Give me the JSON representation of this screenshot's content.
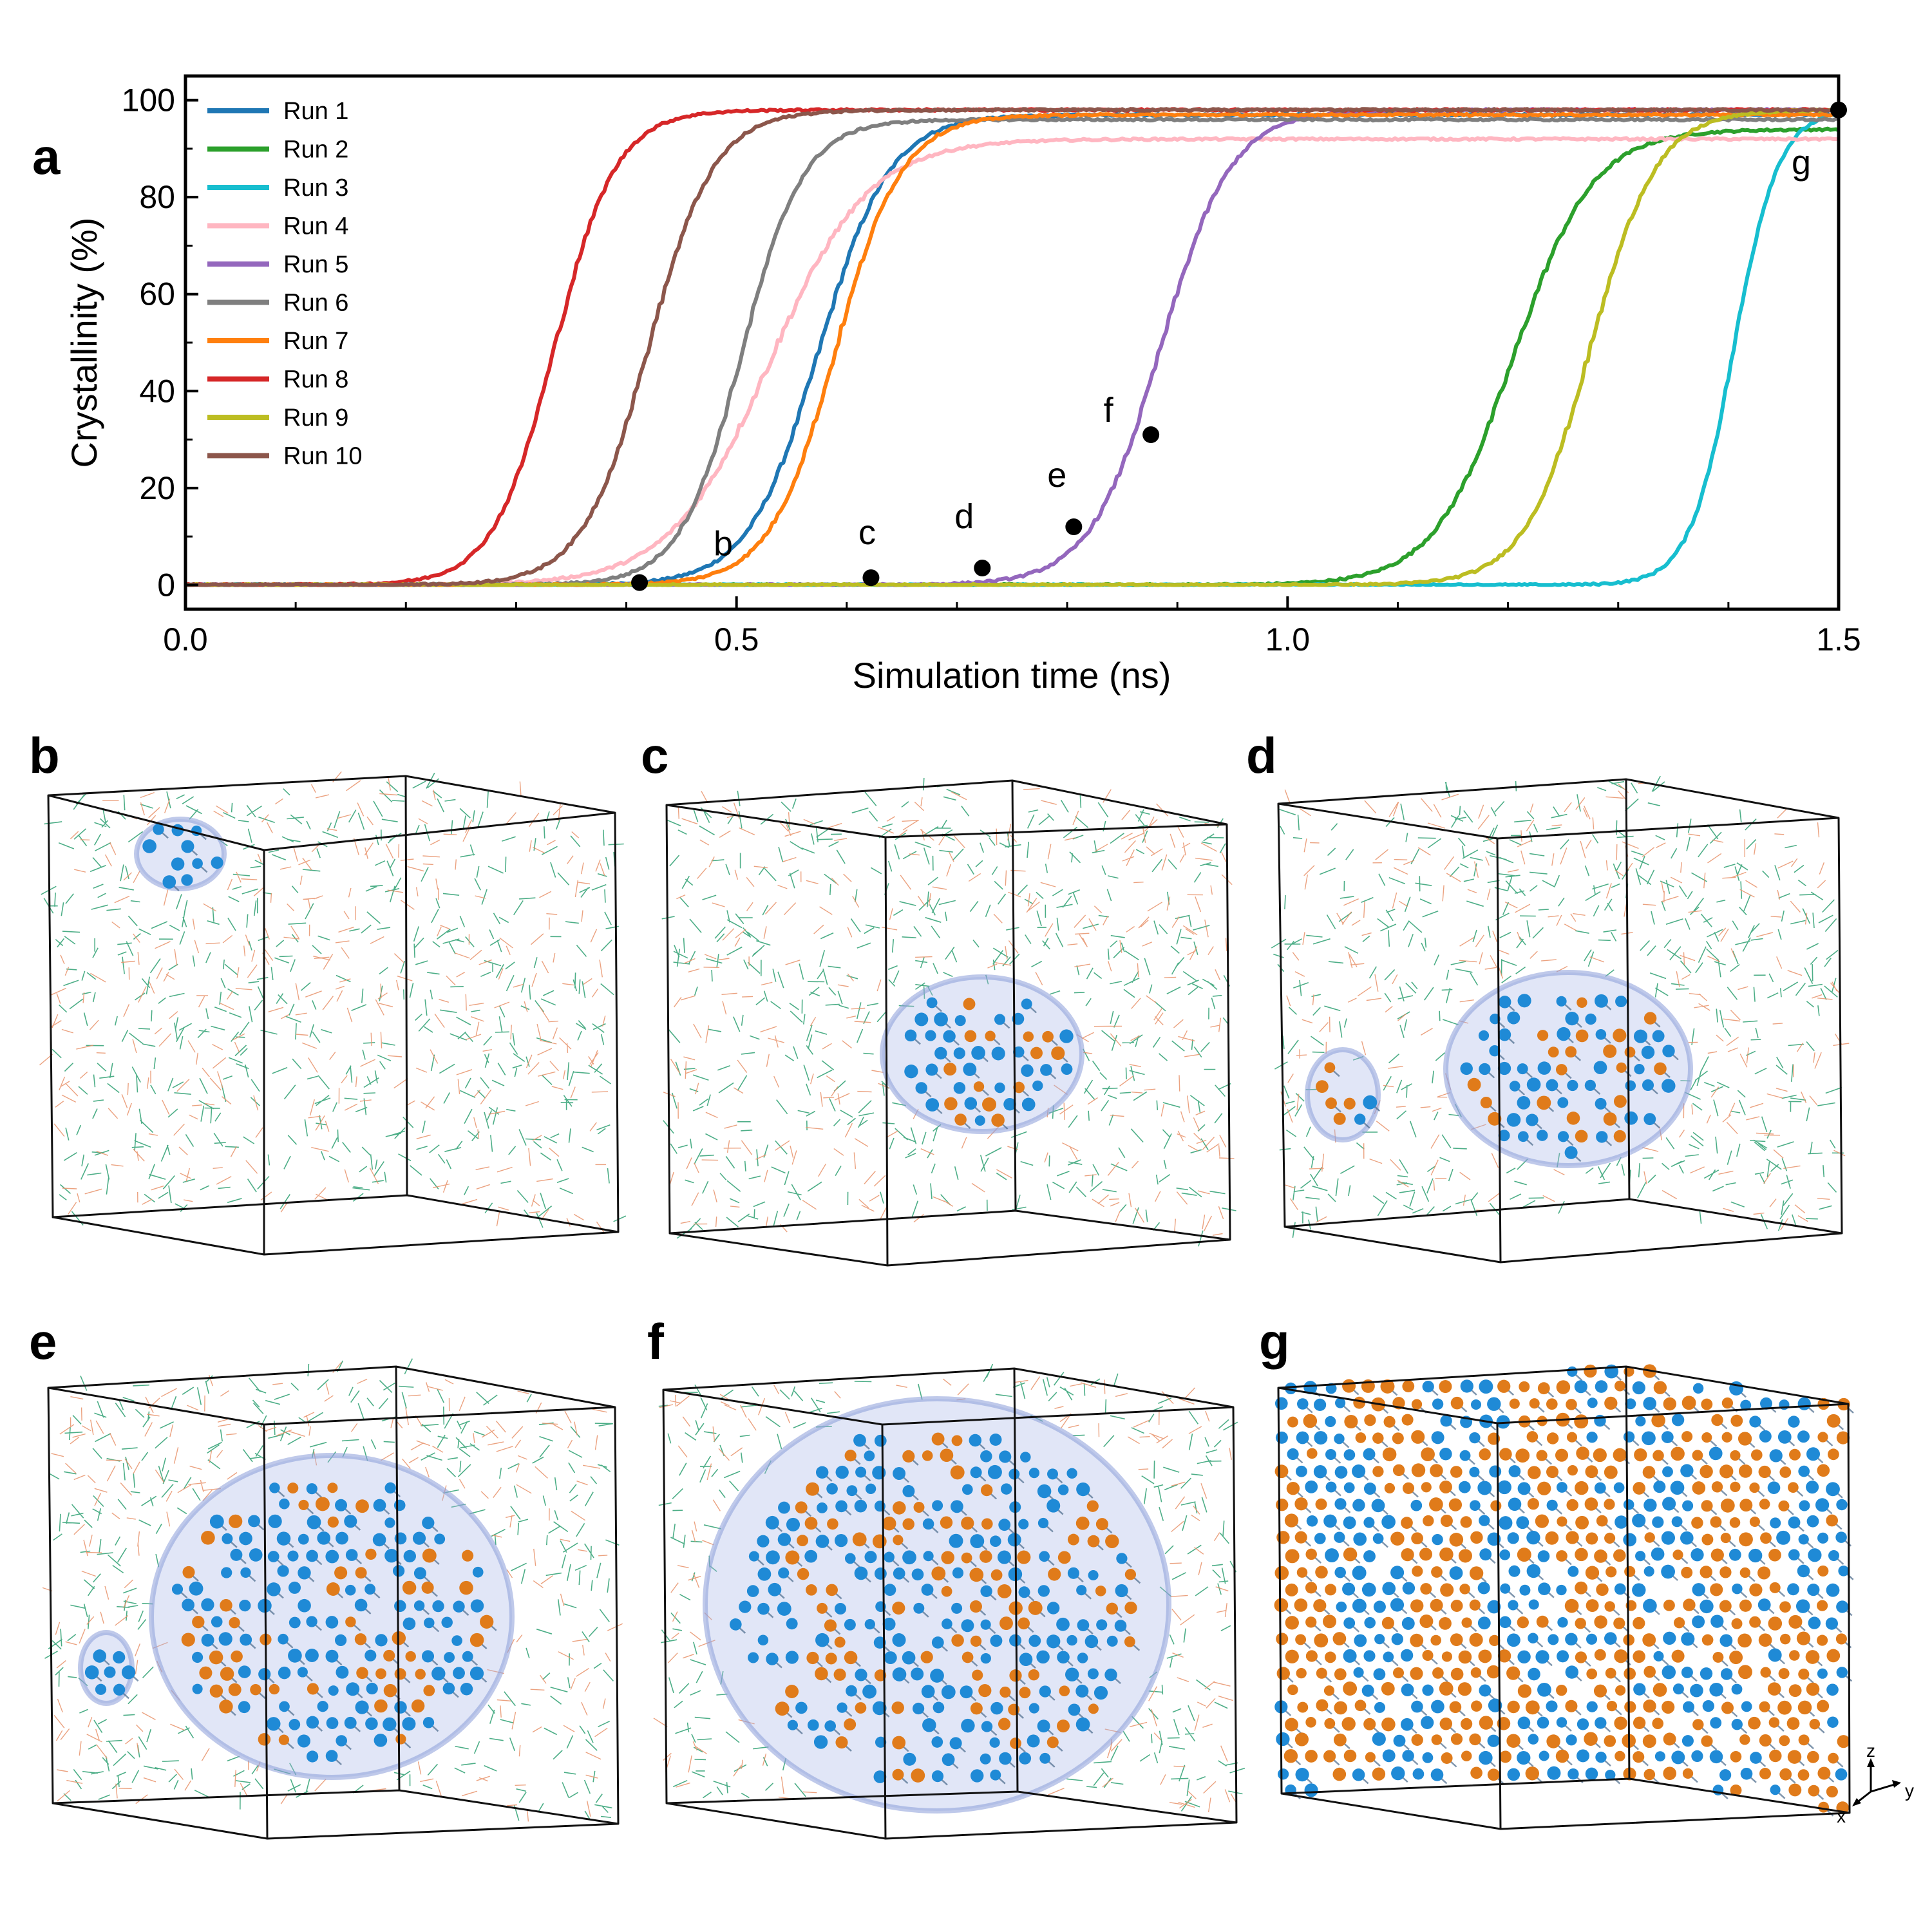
{
  "figure": {
    "panel_labels": [
      "a",
      "b",
      "c",
      "d",
      "e",
      "f",
      "g"
    ],
    "axes_triad": [
      "z",
      "y",
      "x"
    ]
  },
  "chart_data": {
    "type": "line",
    "title": "",
    "xlabel": "Simulation time (ns)",
    "ylabel": "Crystallinity (%)",
    "xlim": [
      0.0,
      1.5
    ],
    "ylim": [
      -5,
      105
    ],
    "xticks": [
      0.0,
      0.5,
      1.0,
      1.5
    ],
    "xtick_labels": [
      "0.0",
      "0.5",
      "1.0",
      "1.5"
    ],
    "yticks": [
      0,
      20,
      40,
      60,
      80,
      100
    ],
    "ytick_labels": [
      "0",
      "20",
      "40",
      "60",
      "80",
      "100"
    ],
    "grid": false,
    "legend_position": "upper-left",
    "series": [
      {
        "name": "Run 1",
        "color": "#1f77b4",
        "onset": 0.575,
        "width": 0.032,
        "plateau": 97
      },
      {
        "name": "Run 2",
        "color": "#2ca02c",
        "onset": 1.205,
        "width": 0.036,
        "plateau": 94
      },
      {
        "name": "Run 3",
        "color": "#17becf",
        "onset": 1.405,
        "width": 0.02,
        "plateau": 98
      },
      {
        "name": "Run 4",
        "color": "#ffb6c1",
        "onset": 0.53,
        "width": 0.045,
        "plateau": 92
      },
      {
        "name": "Run 5",
        "color": "#9467bd",
        "onset": 0.885,
        "width": 0.032,
        "plateau": 98
      },
      {
        "name": "Run 6",
        "color": "#7f7f7f",
        "onset": 0.505,
        "width": 0.028,
        "plateau": 96
      },
      {
        "name": "Run 7",
        "color": "#ff7f0e",
        "onset": 0.59,
        "width": 0.03,
        "plateau": 97
      },
      {
        "name": "Run 8",
        "color": "#d62728",
        "onset": 0.335,
        "width": 0.028,
        "plateau": 98
      },
      {
        "name": "Run 9",
        "color": "#bcbd22",
        "onset": 1.275,
        "width": 0.03,
        "plateau": 98
      },
      {
        "name": "Run 10",
        "color": "#8c564b",
        "onset": 0.42,
        "width": 0.03,
        "plateau": 98
      }
    ],
    "annotations": [
      {
        "label": "b",
        "x": 0.412,
        "y": 0.5
      },
      {
        "label": "c",
        "x": 0.622,
        "y": 1.5
      },
      {
        "label": "d",
        "x": 0.723,
        "y": 3.5
      },
      {
        "label": "e",
        "x": 0.806,
        "y": 12
      },
      {
        "label": "f",
        "x": 0.876,
        "y": 31
      },
      {
        "label": "g",
        "x": 1.5,
        "y": 98
      }
    ]
  }
}
